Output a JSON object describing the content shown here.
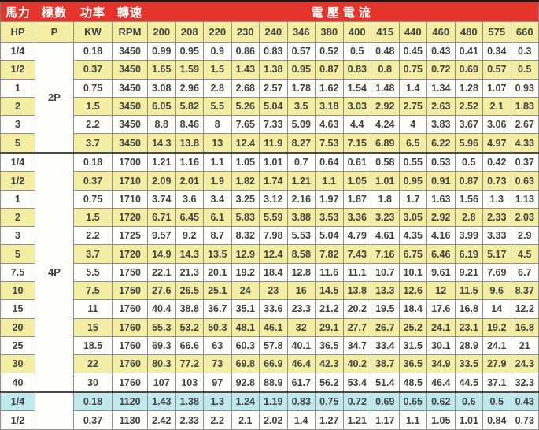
{
  "header": {
    "groups": [
      {
        "label": "馬力",
        "span": 1
      },
      {
        "label": "極數",
        "span": 1
      },
      {
        "label": "功率",
        "span": 1
      },
      {
        "label": "轉速",
        "span": 1
      },
      {
        "label": "電壓電流",
        "span": 14
      }
    ],
    "columns": [
      "HP",
      "P",
      "KW",
      "RPM",
      "200",
      "208",
      "220",
      "230",
      "240",
      "346",
      "380",
      "400",
      "415",
      "440",
      "460",
      "480",
      "575",
      "660"
    ]
  },
  "sections": [
    {
      "pole": "2P",
      "rows": [
        {
          "hp": "1/4",
          "kw": "0.18",
          "rpm": "3450",
          "tone": "white",
          "currents": [
            "0.99",
            "0.95",
            "0.9",
            "0.86",
            "0.83",
            "0.57",
            "0.52",
            "0.5",
            "0.48",
            "0.45",
            "0.43",
            "0.41",
            "0.34",
            "0.3"
          ]
        },
        {
          "hp": "1/2",
          "kw": "0.37",
          "rpm": "3450",
          "tone": "yellow",
          "currents": [
            "1.65",
            "1.59",
            "1.5",
            "1.43",
            "1.38",
            "0.95",
            "0.87",
            "0.83",
            "0.8",
            "0.75",
            "0.72",
            "0.69",
            "0.57",
            "0.5"
          ]
        },
        {
          "hp": "1",
          "kw": "0.75",
          "rpm": "3450",
          "tone": "white",
          "currents": [
            "3.08",
            "2.96",
            "2.8",
            "2.68",
            "2.57",
            "1.78",
            "1.62",
            "1.54",
            "1.48",
            "1.4",
            "1.34",
            "1.28",
            "1.07",
            "0.93"
          ]
        },
        {
          "hp": "2",
          "kw": "1.5",
          "rpm": "3450",
          "tone": "yellow",
          "currents": [
            "6.05",
            "5.82",
            "5.5",
            "5.26",
            "5.04",
            "3.5",
            "3.18",
            "3.03",
            "2.92",
            "2.75",
            "2.63",
            "2.52",
            "2.1",
            "1.83"
          ]
        },
        {
          "hp": "3",
          "kw": "2.2",
          "rpm": "3450",
          "tone": "white",
          "currents": [
            "8.8",
            "8.46",
            "8",
            "7.65",
            "7.33",
            "5.09",
            "4.63",
            "4.4",
            "4.24",
            "4",
            "3.83",
            "3.67",
            "3.06",
            "2.67"
          ]
        },
        {
          "hp": "5",
          "kw": "3.7",
          "rpm": "3450",
          "tone": "yellow",
          "currents": [
            "14.3",
            "13.8",
            "13",
            "12.4",
            "11.9",
            "8.27",
            "7.53",
            "7.15",
            "6.89",
            "6.5",
            "6.22",
            "5.96",
            "4.97",
            "4.33"
          ]
        }
      ]
    },
    {
      "pole": "4P",
      "rows": [
        {
          "hp": "1/4",
          "kw": "0.18",
          "rpm": "1700",
          "tone": "white",
          "currents": [
            "1.21",
            "1.16",
            "1.1",
            "1.05",
            "1.01",
            "0.7",
            "0.64",
            "0.61",
            "0.58",
            "0.55",
            "0.53",
            "0.5",
            "0.42",
            "0.37"
          ]
        },
        {
          "hp": "1/2",
          "kw": "0.37",
          "rpm": "1710",
          "tone": "yellow",
          "currents": [
            "2.09",
            "2.01",
            "1.9",
            "1.82",
            "1.74",
            "1.21",
            "1.1",
            "1.05",
            "1.01",
            "0.95",
            "0.91",
            "0.87",
            "0.73",
            "0.63"
          ]
        },
        {
          "hp": "1",
          "kw": "0.75",
          "rpm": "1710",
          "tone": "white",
          "currents": [
            "3.74",
            "3.6",
            "3.4",
            "3.25",
            "3.12",
            "2.16",
            "1.97",
            "1.87",
            "1.8",
            "1.7",
            "1.63",
            "1.56",
            "1.3",
            "1.13"
          ]
        },
        {
          "hp": "2",
          "kw": "1.5",
          "rpm": "1720",
          "tone": "yellow",
          "currents": [
            "6.71",
            "6.45",
            "6.1",
            "5.83",
            "5.59",
            "3.88",
            "3.53",
            "3.36",
            "3.23",
            "3.05",
            "2.92",
            "2.8",
            "2.33",
            "2.03"
          ]
        },
        {
          "hp": "3",
          "kw": "2.2",
          "rpm": "1725",
          "tone": "white",
          "currents": [
            "9.57",
            "9.2",
            "8.7",
            "8.32",
            "7.98",
            "5.53",
            "5.04",
            "4.79",
            "4.61",
            "4.35",
            "4.16",
            "3.99",
            "3.33",
            "2.9"
          ]
        },
        {
          "hp": "5",
          "kw": "3.7",
          "rpm": "1720",
          "tone": "yellow",
          "currents": [
            "14.9",
            "14.3",
            "13.5",
            "12.9",
            "12.4",
            "8.58",
            "7.82",
            "7.43",
            "7.16",
            "6.75",
            "6.46",
            "6.19",
            "5.17",
            "4.5"
          ]
        },
        {
          "hp": "7.5",
          "kw": "5.5",
          "rpm": "1750",
          "tone": "white",
          "currents": [
            "22.1",
            "21.3",
            "20.1",
            "19.2",
            "18.4",
            "12.8",
            "11.6",
            "11.1",
            "10.7",
            "10.1",
            "9.61",
            "9.21",
            "7.69",
            "6.7"
          ]
        },
        {
          "hp": "10",
          "kw": "7.5",
          "rpm": "1750",
          "tone": "yellow",
          "currents": [
            "27.6",
            "26.5",
            "25.1",
            "24",
            "23",
            "16",
            "14.5",
            "13.8",
            "13.3",
            "12.6",
            "12",
            "11.5",
            "9.6",
            "8.37"
          ]
        },
        {
          "hp": "15",
          "kw": "11",
          "rpm": "1760",
          "tone": "white",
          "currents": [
            "40.4",
            "38.8",
            "36.7",
            "35.1",
            "33.6",
            "23.3",
            "21.2",
            "20.2",
            "19.5",
            "18.4",
            "17.6",
            "16.8",
            "14",
            "12.2"
          ]
        },
        {
          "hp": "20",
          "kw": "15",
          "rpm": "1760",
          "tone": "yellow",
          "currents": [
            "55.3",
            "53.2",
            "50.3",
            "48.1",
            "46.1",
            "32",
            "29.1",
            "27.7",
            "26.7",
            "25.2",
            "24.1",
            "23.1",
            "19.2",
            "16.8"
          ]
        },
        {
          "hp": "25",
          "kw": "18.5",
          "rpm": "1760",
          "tone": "white",
          "currents": [
            "69.3",
            "66.6",
            "63",
            "60.3",
            "57.8",
            "40.1",
            "36.5",
            "34.7",
            "33.4",
            "31.5",
            "30.1",
            "28.9",
            "24.1",
            "21"
          ]
        },
        {
          "hp": "30",
          "kw": "22",
          "rpm": "1760",
          "tone": "yellow",
          "currents": [
            "80.3",
            "77.2",
            "73",
            "69.8",
            "66.9",
            "46.4",
            "42.3",
            "40.2",
            "38.7",
            "36.5",
            "34.9",
            "33.5",
            "27.9",
            "24.3"
          ]
        },
        {
          "hp": "40",
          "kw": "30",
          "rpm": "1760",
          "tone": "white",
          "currents": [
            "107",
            "103",
            "97",
            "92.8",
            "88.9",
            "61.7",
            "56.2",
            "53.4",
            "51.4",
            "48.5",
            "46.4",
            "44.5",
            "37.1",
            "32.3"
          ]
        }
      ]
    },
    {
      "pole": "",
      "rows": [
        {
          "hp": "1/4",
          "kw": "0.18",
          "rpm": "1120",
          "tone": "cyan",
          "currents": [
            "1.43",
            "1.38",
            "1.3",
            "1.24",
            "1.19",
            "0.83",
            "0.75",
            "0.72",
            "0.69",
            "0.65",
            "0.62",
            "0.6",
            "0.5",
            "0.43"
          ]
        },
        {
          "hp": "1/2",
          "kw": "0.37",
          "rpm": "1130",
          "tone": "white",
          "currents": [
            "2.42",
            "2.33",
            "2.2",
            "2.1",
            "2.02",
            "1.4",
            "1.27",
            "1.21",
            "1.17",
            "1.1",
            "1.05",
            "1.01",
            "0.84",
            "0.73"
          ]
        }
      ]
    }
  ],
  "colors": {
    "header_red": "#e4342b",
    "header_text": "#ffffff",
    "stripe_yellow": "#f3eea2",
    "row_white": "#fdfdfa",
    "highlight_cyan": "#bfe9ec",
    "grid_line": "#8f8f8f",
    "cell_text": "#424242"
  }
}
